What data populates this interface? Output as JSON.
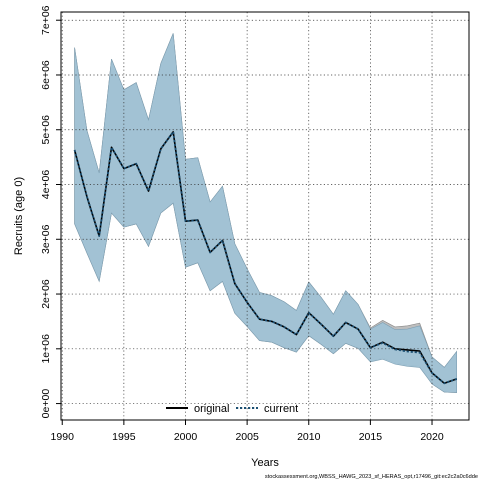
{
  "chart_data": {
    "type": "line",
    "xlabel": "Years",
    "ylabel": "Recruits (age 0)",
    "xlim": [
      1989.9,
      2023.0
    ],
    "ylim": [
      -300000,
      7150000
    ],
    "x_ticks": [
      1990,
      1995,
      2000,
      2005,
      2010,
      2015,
      2020
    ],
    "x_tick_labels": [
      "1990",
      "1995",
      "2000",
      "2005",
      "2010",
      "2015",
      "2020"
    ],
    "y_ticks": [
      0,
      1000000,
      2000000,
      3000000,
      4000000,
      5000000,
      6000000,
      7000000
    ],
    "y_tick_labels": [
      "0e+00",
      "1e+06",
      "2e+06",
      "3e+06",
      "4e+06",
      "5e+06",
      "6e+06",
      "7e+06"
    ],
    "grid": true,
    "legend_position": "bottom-center",
    "colors": {
      "band_original": "#b3b3b3",
      "band_current": "#9fc2d6",
      "line_original": "#000000",
      "line_current": "#1b4f72"
    },
    "x": [
      1991,
      1992,
      1993,
      1994,
      1995,
      1996,
      1997,
      1998,
      1999,
      2000,
      2001,
      2002,
      2003,
      2004,
      2005,
      2006,
      2007,
      2008,
      2009,
      2010,
      2011,
      2012,
      2013,
      2014,
      2015,
      2016,
      2017,
      2018,
      2019,
      2020,
      2021,
      2022
    ],
    "series": [
      {
        "name": "original",
        "style": "solid",
        "values": [
          4630000,
          3780000,
          3060000,
          4680000,
          4290000,
          4380000,
          3880000,
          4650000,
          4960000,
          3330000,
          3350000,
          2760000,
          2980000,
          2190000,
          1850000,
          1540000,
          1500000,
          1400000,
          1260000,
          1660000,
          1450000,
          1230000,
          1480000,
          1360000,
          1020000,
          1120000,
          1000000,
          980000,
          960000,
          560000,
          370000,
          450000
        ],
        "lower": [
          3280000,
          2750000,
          2230000,
          3480000,
          3220000,
          3280000,
          2870000,
          3480000,
          3660000,
          2490000,
          2570000,
          2060000,
          2230000,
          1650000,
          1410000,
          1150000,
          1120000,
          1020000,
          940000,
          1240000,
          1080000,
          910000,
          1100000,
          1010000,
          770000,
          830000,
          740000,
          700000,
          680000,
          360000,
          210000,
          200000
        ],
        "upper": [
          6500000,
          4990000,
          4210000,
          6290000,
          5730000,
          5860000,
          5180000,
          6210000,
          6760000,
          4460000,
          4490000,
          3680000,
          3970000,
          2920000,
          2460000,
          2030000,
          1970000,
          1860000,
          1700000,
          2220000,
          1940000,
          1630000,
          2060000,
          1810000,
          1380000,
          1520000,
          1400000,
          1420000,
          1470000,
          850000,
          660000,
          950000
        ]
      },
      {
        "name": "current",
        "style": "dotted",
        "values": [
          4630000,
          3780000,
          3060000,
          4680000,
          4290000,
          4380000,
          3880000,
          4650000,
          4960000,
          3330000,
          3350000,
          2760000,
          2980000,
          2190000,
          1850000,
          1540000,
          1500000,
          1400000,
          1260000,
          1660000,
          1450000,
          1230000,
          1480000,
          1360000,
          1020000,
          1110000,
          990000,
          950000,
          930000,
          560000,
          370000,
          450000
        ],
        "lower": [
          3280000,
          2750000,
          2230000,
          3480000,
          3220000,
          3280000,
          2870000,
          3480000,
          3660000,
          2490000,
          2570000,
          2060000,
          2230000,
          1650000,
          1410000,
          1150000,
          1120000,
          1020000,
          940000,
          1240000,
          1080000,
          910000,
          1100000,
          1010000,
          760000,
          810000,
          720000,
          680000,
          660000,
          360000,
          210000,
          200000
        ],
        "upper": [
          6500000,
          4990000,
          4210000,
          6290000,
          5730000,
          5860000,
          5180000,
          6210000,
          6760000,
          4460000,
          4490000,
          3680000,
          3970000,
          2920000,
          2460000,
          2030000,
          1970000,
          1860000,
          1700000,
          2220000,
          1940000,
          1630000,
          2060000,
          1810000,
          1360000,
          1480000,
          1350000,
          1360000,
          1420000,
          850000,
          660000,
          950000
        ]
      }
    ],
    "caption": "stockassessment.org,WBSS_HAWG_2023_sf_HERAS_opt,r17496_git:ec2c2a0c6dde"
  }
}
